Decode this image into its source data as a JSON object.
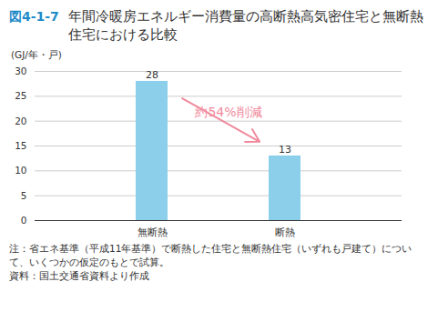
{
  "chart_data": {
    "type": "bar",
    "figure_label": "図4-1-7",
    "title": "年間冷暖房エネルギー消費量の高断熱高気密住宅と無断熱住宅における比較",
    "y_label": "(GJ/年・戸)",
    "categories": [
      "無断熱",
      "断熱"
    ],
    "values": [
      28,
      13
    ],
    "color": "#8ccfea",
    "ylim": [
      0,
      30
    ],
    "yticks": [
      0,
      5,
      10,
      15,
      20,
      25,
      30
    ],
    "grid": true,
    "data_labels": true,
    "annotations": [
      {
        "text": "約54%削減",
        "from": "無断熱",
        "to": "断熱",
        "color": "#f08a9c"
      }
    ],
    "notes": [
      "注：省エネ基準（平成11年基準）で断熱した住宅と無断熱住宅（いずれも戸建て）について、いくつかの仮定のもとで試算。",
      "資料：国土交通省資料より作成"
    ]
  }
}
